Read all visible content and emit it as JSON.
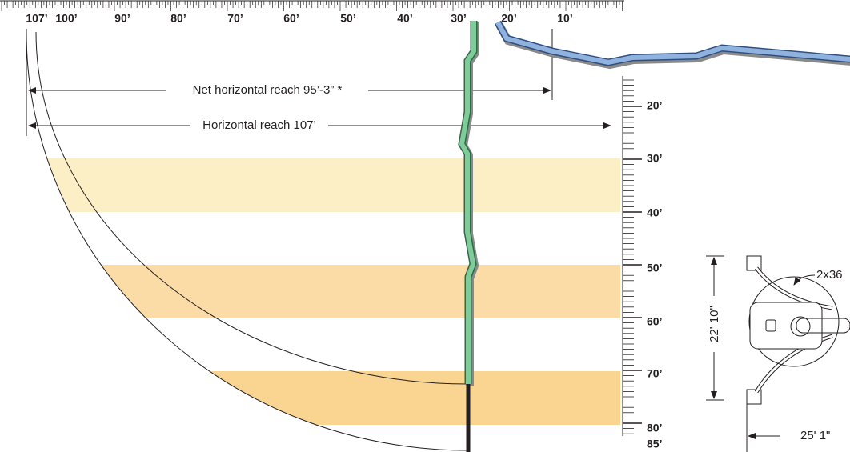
{
  "ruler_top": {
    "labels": [
      "107’",
      "100’",
      "90’",
      "80’",
      "70’",
      "60’",
      "50’",
      "40’",
      "30’",
      "20’",
      "10’"
    ]
  },
  "ruler_side": {
    "labels": [
      "20’",
      "30’",
      "40’",
      "50’",
      "60’",
      "70’",
      "80’",
      "85’"
    ]
  },
  "annotations": {
    "net_reach": "Net horizontal reach 95’-3” *",
    "horizontal_reach": "Horizontal reach 107’"
  },
  "outrigger": {
    "width": "22' 10\"",
    "length": "25' 1\"",
    "label": "2x36"
  }
}
